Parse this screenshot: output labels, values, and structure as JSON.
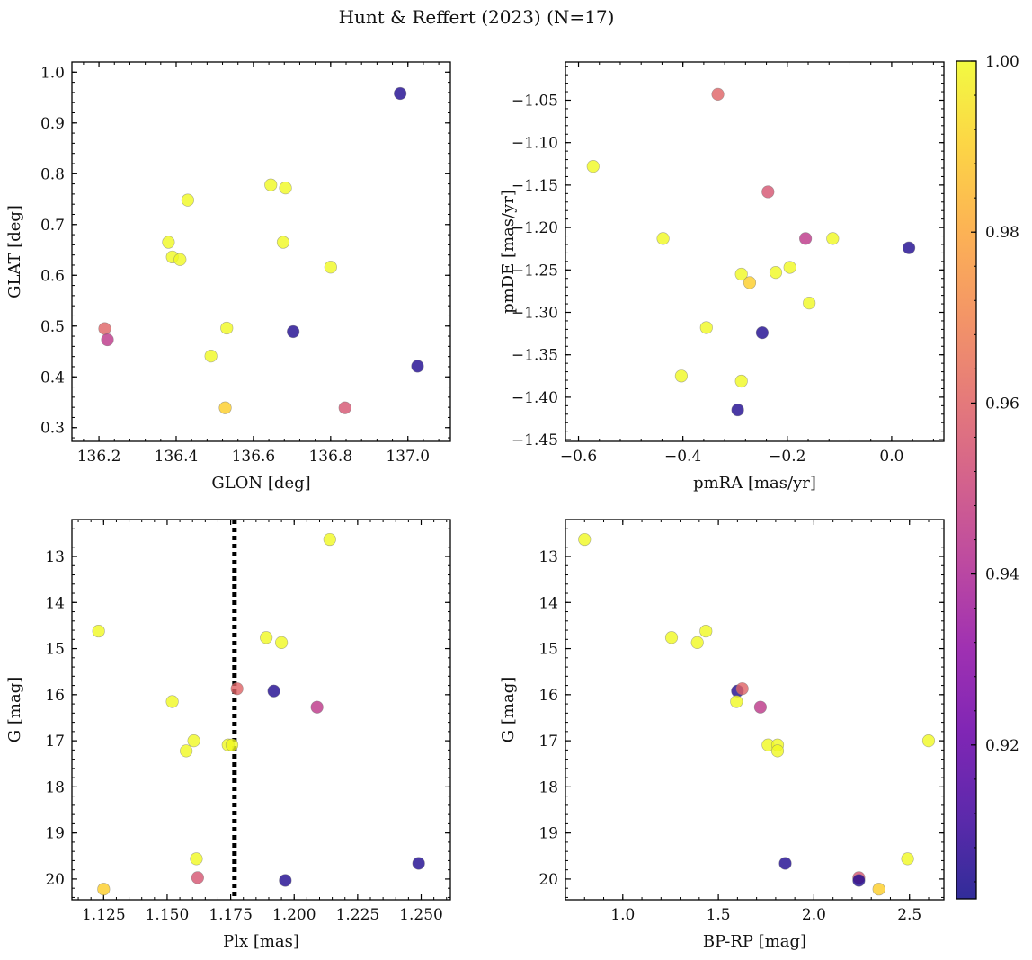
{
  "title": "Hunt & Reffert (2023) (N=17)",
  "colorbar": {
    "cmap": "plasma",
    "vmin": 0.902,
    "vmax": 1.0,
    "ticks": [
      0.92,
      0.94,
      0.96,
      0.98,
      1.0
    ],
    "tick_labels": [
      "0.92",
      "0.94",
      "0.96",
      "0.98",
      "1.00"
    ]
  },
  "chart_data": [
    {
      "type": "scatter",
      "id": "glon-glat",
      "xlabel": "GLON [deg]",
      "ylabel": "GLAT [deg]",
      "xlim": [
        136.13,
        137.11
      ],
      "ylim": [
        0.273,
        1.02
      ],
      "invert_y": false,
      "xticks": [
        136.2,
        136.4,
        136.6,
        136.8,
        137.0
      ],
      "xtick_labels": [
        "136.2",
        "136.4",
        "136.6",
        "136.8",
        "137.0"
      ],
      "yticks": [
        0.3,
        0.4,
        0.5,
        0.6,
        0.7,
        0.8,
        0.9,
        1.0
      ],
      "ytick_labels": [
        "0.3",
        "0.4",
        "0.5",
        "0.6",
        "0.7",
        "0.8",
        "0.9",
        "1.0"
      ],
      "x": [
        136.98,
        136.645,
        136.683,
        136.43,
        136.38,
        136.39,
        136.41,
        136.677,
        136.8,
        136.215,
        136.222,
        136.531,
        136.703,
        136.49,
        137.025,
        136.527,
        136.837
      ],
      "y": [
        0.958,
        0.778,
        0.772,
        0.748,
        0.665,
        0.636,
        0.631,
        0.665,
        0.616,
        0.495,
        0.473,
        0.496,
        0.489,
        0.441,
        0.421,
        0.339,
        0.339
      ],
      "c": [
        0.905,
        1.0,
        1.0,
        1.0,
        1.0,
        1.0,
        1.0,
        1.0,
        1.0,
        0.96,
        0.945,
        1.0,
        0.905,
        1.0,
        0.905,
        0.99,
        0.955
      ]
    },
    {
      "type": "scatter",
      "id": "pmra-pmde",
      "xlabel": "pmRA [mas/yr]",
      "ylabel": "pmDE [mas/yr]",
      "xlim": [
        -0.625,
        0.1
      ],
      "ylim": [
        -1.452,
        -1.005
      ],
      "invert_y": false,
      "xticks": [
        -0.6,
        -0.4,
        -0.2,
        0.0
      ],
      "xtick_labels": [
        "−0.6",
        "−0.4",
        "−0.2",
        "0.0"
      ],
      "yticks": [
        -1.45,
        -1.4,
        -1.35,
        -1.3,
        -1.25,
        -1.2,
        -1.15,
        -1.1,
        -1.05
      ],
      "ytick_labels": [
        "−1.45",
        "−1.40",
        "−1.35",
        "−1.30",
        "−1.25",
        "−1.20",
        "−1.15",
        "−1.10",
        "−1.05"
      ],
      "x": [
        -0.333,
        -0.572,
        -0.237,
        -0.438,
        -0.165,
        -0.113,
        0.033,
        -0.288,
        -0.222,
        -0.195,
        -0.272,
        -0.158,
        -0.355,
        -0.248,
        -0.403,
        -0.288,
        -0.295
      ],
      "y": [
        -1.043,
        -1.128,
        -1.158,
        -1.213,
        -1.213,
        -1.213,
        -1.224,
        -1.255,
        -1.253,
        -1.247,
        -1.265,
        -1.289,
        -1.318,
        -1.324,
        -1.375,
        -1.381,
        -1.415
      ],
      "c": [
        0.96,
        1.0,
        0.955,
        1.0,
        0.945,
        1.0,
        0.905,
        1.0,
        1.0,
        1.0,
        0.99,
        1.0,
        1.0,
        0.905,
        1.0,
        1.0,
        0.905
      ]
    },
    {
      "type": "scatter",
      "id": "plx-g",
      "xlabel": "Plx [mas]",
      "ylabel": "G [mag]",
      "xlim": [
        1.1125,
        1.2615
      ],
      "ylim": [
        20.45,
        12.2
      ],
      "invert_y": true,
      "xticks": [
        1.125,
        1.15,
        1.175,
        1.2,
        1.225,
        1.25
      ],
      "xtick_labels": [
        "1.125",
        "1.150",
        "1.175",
        "1.200",
        "1.225",
        "1.250"
      ],
      "yticks": [
        13,
        14,
        15,
        16,
        17,
        18,
        19,
        20
      ],
      "ytick_labels": [
        "13",
        "14",
        "15",
        "16",
        "17",
        "18",
        "19",
        "20"
      ],
      "vline": {
        "x": 1.1765,
        "style": "dotted"
      },
      "x": [
        1.214,
        1.123,
        1.189,
        1.195,
        1.1775,
        1.192,
        1.152,
        1.209,
        1.1605,
        1.1575,
        1.174,
        1.1755,
        1.1615,
        1.249,
        1.162,
        1.1965,
        1.125
      ],
      "y": [
        12.63,
        14.62,
        14.76,
        14.87,
        15.87,
        15.92,
        16.15,
        16.27,
        17.0,
        17.22,
        17.09,
        17.09,
        19.56,
        19.66,
        19.97,
        20.03,
        20.22
      ],
      "c": [
        1.0,
        1.0,
        1.0,
        1.0,
        0.96,
        0.905,
        1.0,
        0.945,
        1.0,
        1.0,
        1.0,
        1.0,
        1.0,
        0.905,
        0.955,
        0.905,
        0.99
      ]
    },
    {
      "type": "scatter",
      "id": "bprp-g",
      "xlabel": "BP-RP [mag]",
      "ylabel": "G [mag]",
      "xlim": [
        0.7,
        2.68
      ],
      "ylim": [
        20.45,
        12.2
      ],
      "invert_y": true,
      "xticks": [
        1.0,
        1.5,
        2.0,
        2.5
      ],
      "xtick_labels": [
        "1.0",
        "1.5",
        "2.0",
        "2.5"
      ],
      "yticks": [
        13,
        14,
        15,
        16,
        17,
        18,
        19,
        20
      ],
      "ytick_labels": [
        "13",
        "14",
        "15",
        "16",
        "17",
        "18",
        "19",
        "20"
      ],
      "x": [
        0.8,
        1.435,
        1.255,
        1.39,
        1.6,
        1.625,
        1.595,
        1.72,
        2.6,
        1.76,
        1.81,
        1.81,
        2.49,
        1.85,
        2.235,
        2.235,
        2.34
      ],
      "y": [
        12.63,
        14.62,
        14.76,
        14.87,
        15.92,
        15.87,
        16.15,
        16.27,
        17.0,
        17.09,
        17.09,
        17.22,
        19.56,
        19.66,
        19.97,
        20.03,
        20.22
      ],
      "c": [
        1.0,
        1.0,
        1.0,
        1.0,
        0.905,
        0.96,
        1.0,
        0.945,
        1.0,
        1.0,
        1.0,
        1.0,
        1.0,
        0.905,
        0.955,
        0.905,
        0.99
      ]
    }
  ]
}
